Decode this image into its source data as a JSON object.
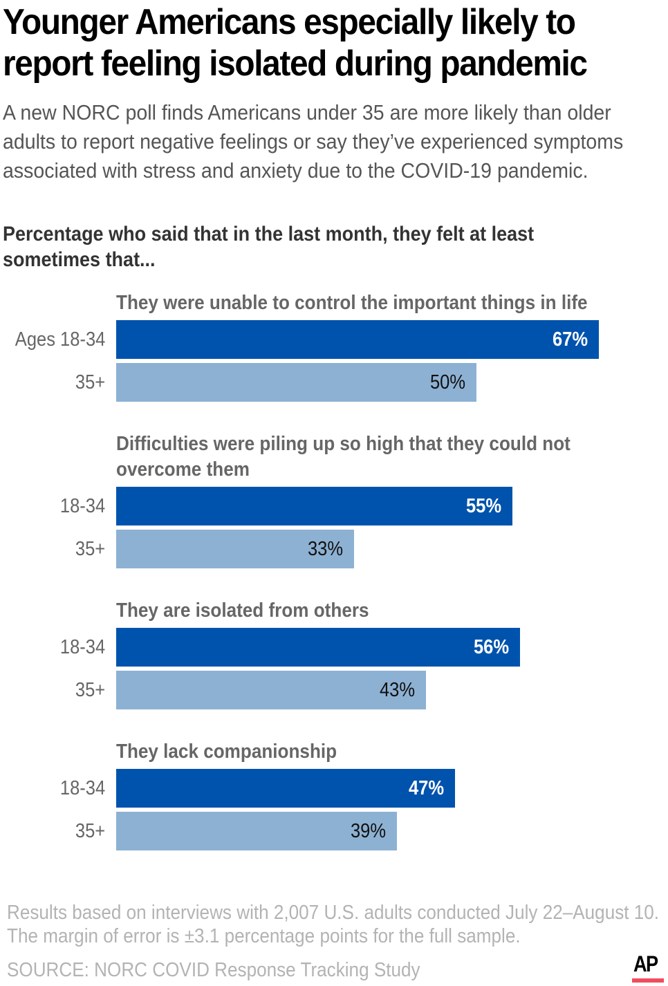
{
  "header": {
    "title": "Younger Americans especially likely to report feeling isolated during pandemic",
    "subtitle": "A new NORC poll finds Americans under 35 are more likely than older adults to report negative feelings or say they’ve experienced symptoms associated with stress and anxiety due to the COVID-19 pandemic."
  },
  "chart_data": {
    "type": "bar",
    "orientation": "horizontal",
    "title": "Percentage who said that in the last month, they felt at least sometimes that...",
    "xlabel": "",
    "ylabel": "",
    "xlim": [
      0,
      100
    ],
    "unit": "%",
    "grid": false,
    "colors": {
      "18-34": "#0053ad",
      "35+": "#8db1d3"
    },
    "groups": [
      {
        "label": "They were unable to control the important things in life",
        "rows": [
          {
            "label": "Ages 18-34",
            "series": "18-34",
            "value": 67,
            "display": "67%"
          },
          {
            "label": "35+",
            "series": "35+",
            "value": 50,
            "display": "50%"
          }
        ]
      },
      {
        "label": "Difficulties were piling up so high that they could not overcome them",
        "rows": [
          {
            "label": "18-34",
            "series": "18-34",
            "value": 55,
            "display": "55%"
          },
          {
            "label": "35+",
            "series": "35+",
            "value": 33,
            "display": "33%"
          }
        ]
      },
      {
        "label": "They are isolated from others",
        "rows": [
          {
            "label": "18-34",
            "series": "18-34",
            "value": 56,
            "display": "56%"
          },
          {
            "label": "35+",
            "series": "35+",
            "value": 43,
            "display": "43%"
          }
        ]
      },
      {
        "label": "They lack companionship",
        "rows": [
          {
            "label": "18-34",
            "series": "18-34",
            "value": 47,
            "display": "47%"
          },
          {
            "label": "35+",
            "series": "35+",
            "value": 39,
            "display": "39%"
          }
        ]
      }
    ]
  },
  "footer": {
    "note": "Results based on interviews with 2,007 U.S. adults conducted July 22–August 10. The margin of error is ±3.1 percentage points for the full sample.",
    "source": "SOURCE: NORC COVID Response Tracking Study",
    "logo_text": "AP",
    "logo_accent": "#ef4d5f"
  }
}
